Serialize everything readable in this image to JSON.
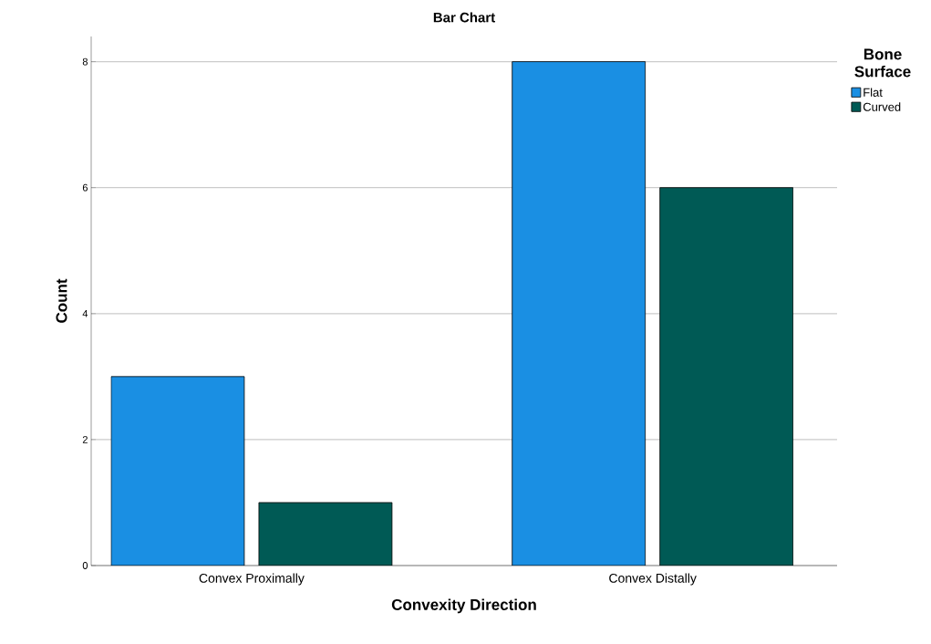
{
  "chart_data": {
    "type": "bar",
    "title": "Bar Chart",
    "xlabel": "Convexity Direction",
    "ylabel": "Count",
    "legend_title": "Bone Surface",
    "categories": [
      "Convex Proximally",
      "Convex Distally"
    ],
    "series": [
      {
        "name": "Flat",
        "color": "#1a8fe3",
        "values": [
          3,
          8
        ]
      },
      {
        "name": "Curved",
        "color": "#005a55",
        "values": [
          1,
          6
        ]
      }
    ],
    "ylim": [
      0,
      8.4
    ],
    "yticks": [
      0,
      2,
      4,
      6,
      8
    ],
    "grid": "y",
    "legend": "top right"
  }
}
